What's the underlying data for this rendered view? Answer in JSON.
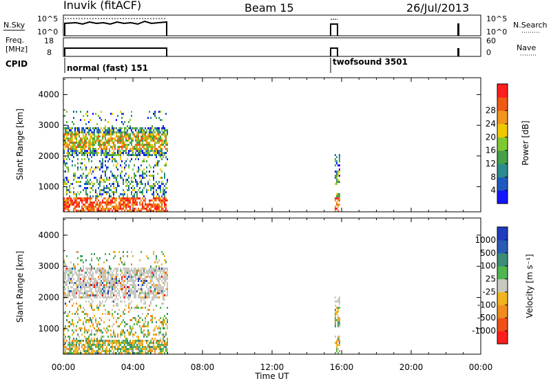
{
  "header": {
    "station": "Inuvik (fitACF)",
    "beam": "Beam 15",
    "date": "26/Jul/2013"
  },
  "strip_panels": {
    "nsky_label": "N.Sky",
    "nsky_ticks": [
      "10^5",
      "10^0"
    ],
    "nsearch_label": "N.Search",
    "nsearch_ticks": [
      "10^5",
      "10^0"
    ],
    "freq_label_1": "Freq.",
    "freq_label_2": "[MHz]",
    "freq_ticks": [
      "18",
      "8"
    ],
    "nave_label": "Nave",
    "nave_ticks": [
      "60",
      "0"
    ],
    "cpid_label": "CPID",
    "cpid_programs": [
      {
        "name": "normal (fast) 151",
        "start_hour": 0.0
      },
      {
        "name": "twofsound 3501",
        "start_hour": 15.6
      }
    ]
  },
  "chart_data": [
    {
      "type": "heatmap",
      "name": "power",
      "ylabel": "Slant Range [km]",
      "ylim": [
        180,
        4550
      ],
      "yticks": [
        "1000",
        "2000",
        "3000",
        "4000"
      ],
      "xlim": [
        0,
        24
      ],
      "colorbar": {
        "label": "Power [dB]",
        "tick_labels": [
          "4",
          "8",
          "12",
          "16",
          "20",
          "24",
          "28"
        ],
        "colors": [
          "#1414ff",
          "#1e5abe",
          "#2a8c8c",
          "#46a046",
          "#7fc832",
          "#f0c800",
          "#f0961e",
          "#f05a14",
          "#ff1e1e"
        ]
      },
      "observation_intervals_ut": [
        [
          0.0,
          6.0
        ],
        [
          15.6,
          15.9
        ]
      ]
    },
    {
      "type": "heatmap",
      "name": "velocity",
      "ylabel": "Slant Range [km]",
      "ylim": [
        180,
        4550
      ],
      "yticks": [
        "1000",
        "2000",
        "3000",
        "4000"
      ],
      "xlim": [
        0,
        24
      ],
      "colorbar": {
        "label": "Velocity [m s⁻¹]",
        "tick_labels": [
          "1000",
          "500",
          "100",
          "25",
          "-25",
          "-100",
          "-500",
          "-1000"
        ],
        "colors": [
          "#1e3cbe",
          "#2a5ab4",
          "#3c8c78",
          "#50b450",
          "#c8c8c0",
          "#f0b41e",
          "#f08c1e",
          "#f05014",
          "#ff1e1e"
        ]
      },
      "observation_intervals_ut": [
        [
          0.0,
          6.0
        ],
        [
          15.6,
          15.9
        ]
      ]
    }
  ],
  "time_axis": {
    "tick_labels": [
      "00:00",
      "04:00",
      "08:00",
      "12:00",
      "16:00",
      "20:00",
      "00:00"
    ],
    "label": "Time UT"
  }
}
